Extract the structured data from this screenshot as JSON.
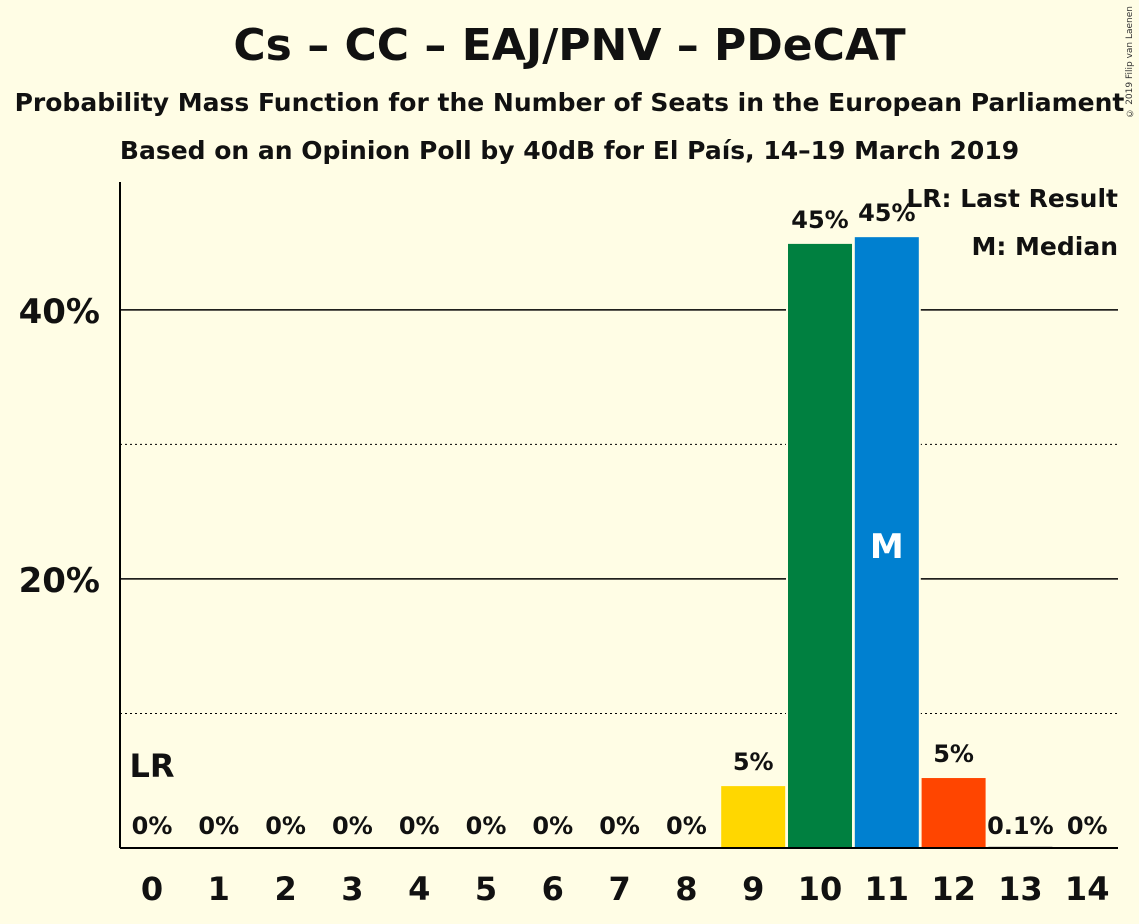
{
  "header": {
    "title": "Cs – CC – EAJ/PNV – PDeCAT",
    "subtitle_1": "Probability Mass Function for the Number of Seats in the European Parliament",
    "subtitle_2": "Based on an Opinion Poll by 40dB for El País, 14–19 March 2019",
    "copyright": "© 2019 Filip van Laenen"
  },
  "legend": {
    "last_result": "LR: Last Result",
    "median": "M: Median"
  },
  "chart_data": {
    "type": "bar",
    "categories": [
      "0",
      "1",
      "2",
      "3",
      "4",
      "5",
      "6",
      "7",
      "8",
      "9",
      "10",
      "11",
      "12",
      "13",
      "14"
    ],
    "values": [
      0,
      0,
      0,
      0,
      0,
      0,
      0,
      0,
      0,
      4.6,
      44.9,
      45.4,
      5.2,
      0.1,
      0
    ],
    "value_labels": [
      "0%",
      "0%",
      "0%",
      "0%",
      "0%",
      "0%",
      "0%",
      "0%",
      "0%",
      "5%",
      "45%",
      "45%",
      "5%",
      "0.1%",
      "0%"
    ],
    "bar_colors": [
      "#888888",
      "#888888",
      "#888888",
      "#888888",
      "#888888",
      "#888888",
      "#888888",
      "#888888",
      "#888888",
      "#ffd700",
      "#008040",
      "#0080d0",
      "#ff4500",
      "#888888",
      "#888888"
    ],
    "y_ticks": [
      {
        "value": 20,
        "label": "20%"
      },
      {
        "value": 40,
        "label": "40%"
      }
    ],
    "minor_gridlines": [
      10,
      30
    ],
    "ylim": [
      0,
      49.5
    ],
    "xlabel": "",
    "ylabel": "",
    "last_result": {
      "category": "0",
      "label": "LR"
    },
    "median": {
      "category": "11",
      "label": "M"
    },
    "grid": true,
    "legend_position": "top-right"
  },
  "colors": {
    "background": "#fffde5",
    "axis": "#000000",
    "text": "#111111"
  }
}
